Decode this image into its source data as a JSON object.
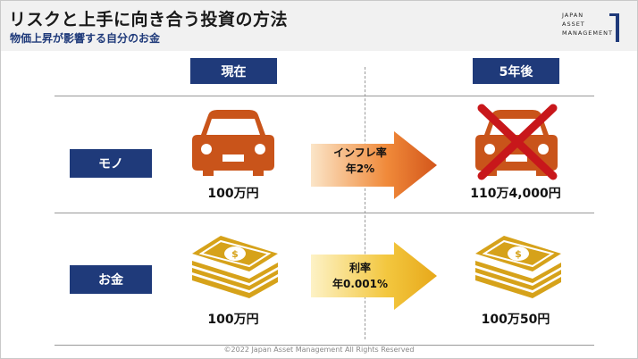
{
  "title": "リスクと上手に向き合う投資の方法",
  "subtitle": "物価上昇が影響する自分のお金",
  "logo": {
    "line1": "JAPAN",
    "line2": "ASSET",
    "line3": "MANAGEMENT"
  },
  "columns": {
    "now": "現在",
    "later": "5年後"
  },
  "rows": [
    {
      "label": "モノ",
      "now_amount": "100万円",
      "arrow_line1": "インフレ率",
      "arrow_line2": "年2%",
      "later_amount": "110万4,000円"
    },
    {
      "label": "お金",
      "now_amount": "100万円",
      "arrow_line1": "利率",
      "arrow_line2": "年0.001%",
      "later_amount": "100万50円"
    }
  ],
  "colors": {
    "navy": "#1f3a7a",
    "car": "#c9541a",
    "money": "#d6a21a",
    "cross": "#c8171b"
  },
  "icons": [
    "car-icon",
    "money-stack-icon",
    "cross-icon",
    "arrow-icon"
  ],
  "footer": "©2022 Japan Asset Management All Rights Reserved"
}
